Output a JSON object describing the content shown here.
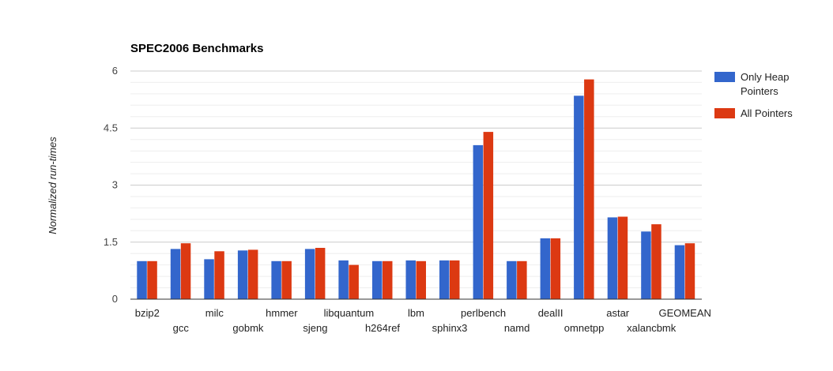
{
  "chart_data": {
    "type": "bar",
    "title": "SPEC2006 Benchmarks",
    "xlabel": "",
    "ylabel": "Normalized run-times",
    "ylim": [
      0,
      6
    ],
    "yticks": [
      "0",
      "1.5",
      "3",
      "4.5",
      "6"
    ],
    "grid": true,
    "legend_position": "right",
    "categories": [
      "bzip2",
      "gcc",
      "milc",
      "gobmk",
      "hmmer",
      "sjeng",
      "libquantum",
      "h264ref",
      "lbm",
      "sphinx3",
      "perlbench",
      "namd",
      "dealII",
      "omnetpp",
      "astar",
      "xalancbmk",
      "GEOMEAN"
    ],
    "series": [
      {
        "name": "Only Heap Pointers",
        "color": "#3366cc",
        "values": [
          1.0,
          1.32,
          1.05,
          1.28,
          1.0,
          1.32,
          1.02,
          1.0,
          1.02,
          1.02,
          4.05,
          1.0,
          1.6,
          5.35,
          2.15,
          1.78,
          1.42
        ]
      },
      {
        "name": "All Pointers",
        "color": "#dc3912",
        "values": [
          1.0,
          1.47,
          1.26,
          1.3,
          1.0,
          1.35,
          0.9,
          1.0,
          1.0,
          1.02,
          4.4,
          1.0,
          1.6,
          5.78,
          2.17,
          1.97,
          1.47
        ]
      }
    ]
  }
}
